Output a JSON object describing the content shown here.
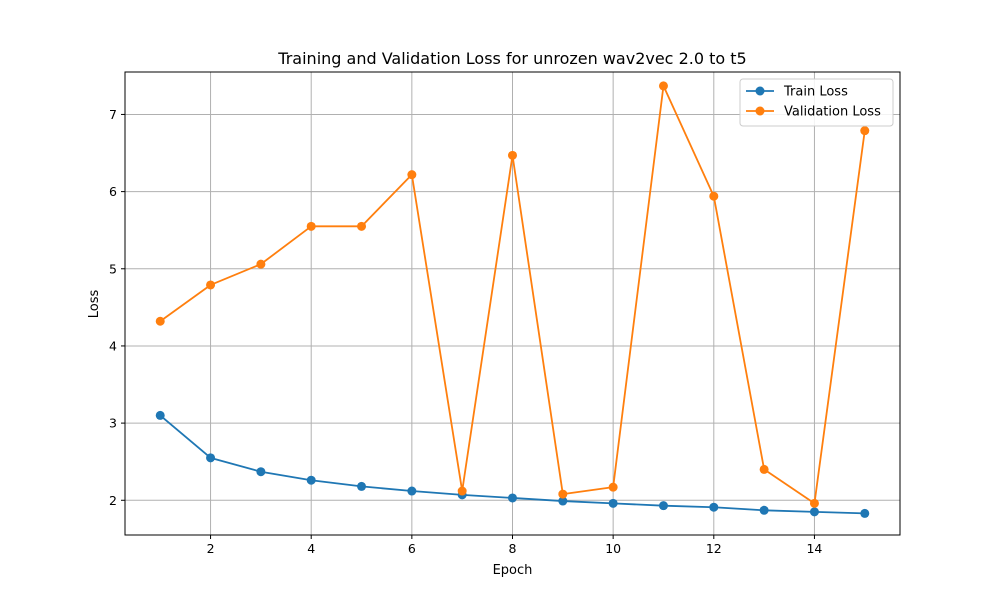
{
  "chart_data": {
    "type": "line",
    "title": "Training and Validation Loss for unrozen wav2vec 2.0 to t5",
    "xlabel": "Epoch",
    "ylabel": "Loss",
    "x": [
      1,
      2,
      3,
      4,
      5,
      6,
      7,
      8,
      9,
      10,
      11,
      12,
      13,
      14,
      15
    ],
    "xlim": [
      0.3,
      15.7
    ],
    "ylim": [
      1.55,
      7.55
    ],
    "xticks": [
      2,
      4,
      6,
      8,
      10,
      12,
      14
    ],
    "yticks": [
      2,
      3,
      4,
      5,
      6,
      7
    ],
    "grid": true,
    "legend_position": "top-right",
    "series": [
      {
        "name": "Train Loss",
        "color": "#1f77b4",
        "marker": "circle",
        "values": [
          3.1,
          2.55,
          2.37,
          2.26,
          2.18,
          2.12,
          2.07,
          2.03,
          1.99,
          1.96,
          1.93,
          1.91,
          1.87,
          1.85,
          1.83
        ]
      },
      {
        "name": "Validation Loss",
        "color": "#ff7f0e",
        "marker": "circle",
        "values": [
          4.32,
          4.79,
          5.06,
          5.55,
          5.55,
          6.22,
          2.12,
          6.47,
          2.08,
          2.17,
          7.37,
          5.94,
          2.4,
          1.96,
          6.79
        ]
      }
    ]
  }
}
